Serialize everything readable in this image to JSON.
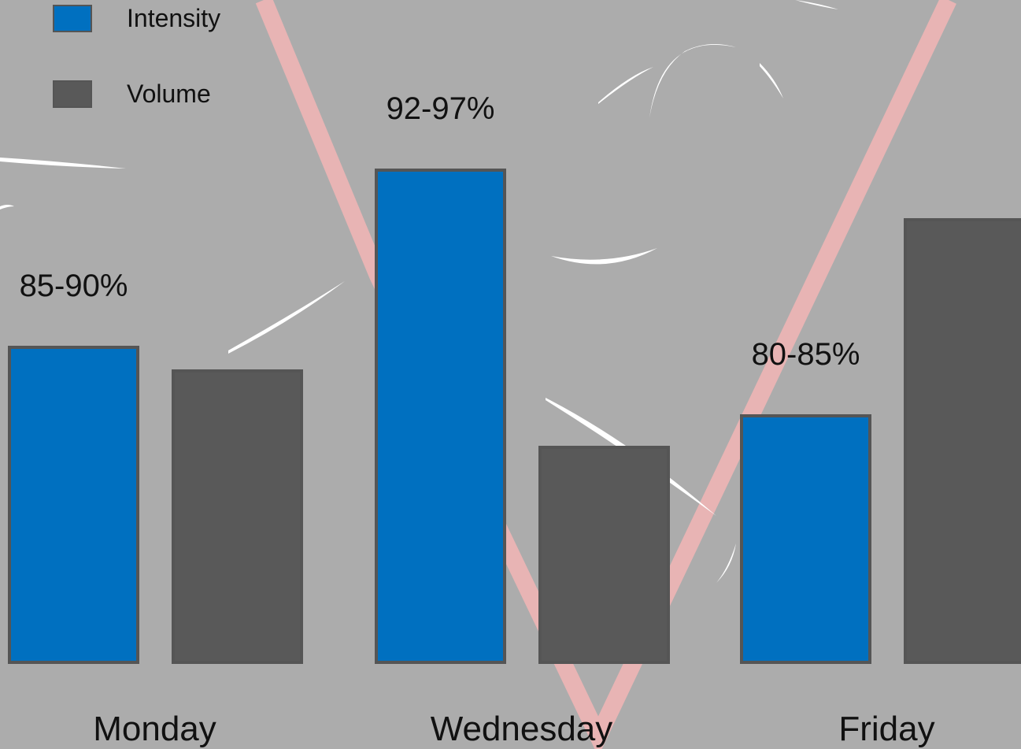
{
  "chart_data": {
    "type": "bar",
    "categories": [
      "Monday",
      "Wednesday",
      "Friday"
    ],
    "series": [
      {
        "name": "Intensity",
        "values": [
          400,
          625,
          313
        ],
        "color": "#0070c0"
      },
      {
        "name": "Volume",
        "values": [
          370,
          273,
          562
        ],
        "color": "#595959"
      }
    ],
    "data_labels": [
      "85-90%",
      "92-97%",
      "80-85%"
    ],
    "legend": "top-left",
    "grid": false,
    "title": "",
    "xlabel": "",
    "ylabel": ""
  },
  "colors": {
    "background": "#acacac",
    "intensity": "#0070c0",
    "volume": "#595959",
    "decoration_line": "#e8b4b4",
    "bar_border": "#555555"
  }
}
